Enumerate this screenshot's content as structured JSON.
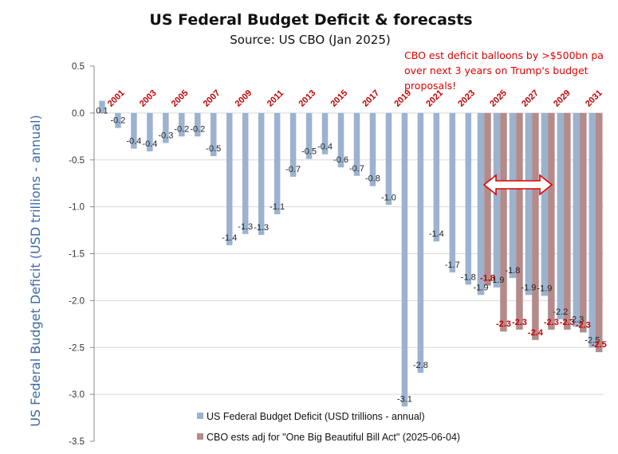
{
  "chart_data": {
    "type": "bar",
    "title": "US Federal Budget Deficit & forecasts",
    "subtitle": "Source: US CBO (Jan 2025)",
    "ylabel": "US Federal Budget Deficit (USD trillions - annual)",
    "ylim": [
      0.5,
      -3.5
    ],
    "y_ticks": [
      "0.5",
      "0.0",
      "-0.5",
      "-1.0",
      "-1.5",
      "-2.0",
      "-2.5",
      "-3.0",
      "-3.5"
    ],
    "y_tick_values": [
      0.5,
      0.0,
      -0.5,
      -1.0,
      -1.5,
      -2.0,
      -2.5,
      -3.0,
      -3.5
    ],
    "legend_position": "bottom",
    "x_tick_labels": [
      "2001",
      "2003",
      "2005",
      "2007",
      "2009",
      "2011",
      "2013",
      "2015",
      "2017",
      "2019",
      "2021",
      "2023",
      "2025",
      "2027",
      "2029",
      "2031"
    ],
    "x": [
      2000,
      2001,
      2002,
      2003,
      2004,
      2005,
      2006,
      2007,
      2008,
      2009,
      2010,
      2011,
      2012,
      2013,
      2014,
      2015,
      2016,
      2017,
      2018,
      2019,
      2020,
      2021,
      2022,
      2023,
      2024,
      2025,
      2026,
      2027,
      2028,
      2029,
      2030,
      2031
    ],
    "series": [
      {
        "name": "US Federal Budget Deficit (USD trillions - annual)",
        "color": "#9bb3d0",
        "values": [
          0.13,
          -0.16,
          -0.38,
          -0.41,
          -0.32,
          -0.25,
          -0.25,
          -0.46,
          -1.41,
          -1.29,
          -1.3,
          -1.08,
          -0.68,
          -0.49,
          -0.44,
          -0.58,
          -0.67,
          -0.78,
          -0.98,
          -3.13,
          -2.77,
          -1.37,
          -1.7,
          -1.83,
          -1.94,
          -1.86,
          -1.76,
          -1.94,
          -1.95,
          -2.2,
          -2.28,
          -2.5
        ],
        "labels": [
          "0.1",
          "-0.2",
          "-0.4",
          "-0.4",
          "-0.3",
          "-0.2",
          "-0.2",
          "-0.5",
          "-1.4",
          "-1.3",
          "-1.3",
          "-1.1",
          "-0.7",
          "-0.5",
          "-0.4",
          "-0.6",
          "-0.7",
          "-0.8",
          "-1.0",
          "-3.1",
          "-2.8",
          "-1.4",
          "-1.7",
          "-1.8",
          "-1.9",
          "-1.9",
          "-1.8",
          "-1.9",
          "-1.9",
          "-2.2",
          "-2.3",
          "-2.5"
        ]
      },
      {
        "name": "CBO ests adj for \"One Big Beautiful Bill Act\" (2025-06-04)",
        "color": "#b48a8a",
        "values": [
          null,
          null,
          null,
          null,
          null,
          null,
          null,
          null,
          null,
          null,
          null,
          null,
          null,
          null,
          null,
          null,
          null,
          null,
          null,
          null,
          null,
          null,
          null,
          null,
          -1.84,
          -2.33,
          -2.31,
          -2.42,
          -2.31,
          -2.31,
          -2.34,
          -2.55
        ],
        "labels": [
          "",
          "",
          "",
          "",
          "",
          "",
          "",
          "",
          "",
          "",
          "",
          "",
          "",
          "",
          "",
          "",
          "",
          "",
          "",
          "",
          "",
          "",
          "",
          "",
          "-1.8",
          "-2.3",
          "-2.3",
          "-2.4",
          "-2.3",
          "-2.3",
          "-2.3",
          "-2.5"
        ]
      }
    ],
    "annotation": {
      "lines": [
        "CBO est deficit balloons by >$500bn pa",
        "over next 3 years on Trump's budget",
        "proposals!"
      ],
      "color": "#e00000",
      "arrow": "double-headed, spanning 2026 to 2029"
    }
  }
}
